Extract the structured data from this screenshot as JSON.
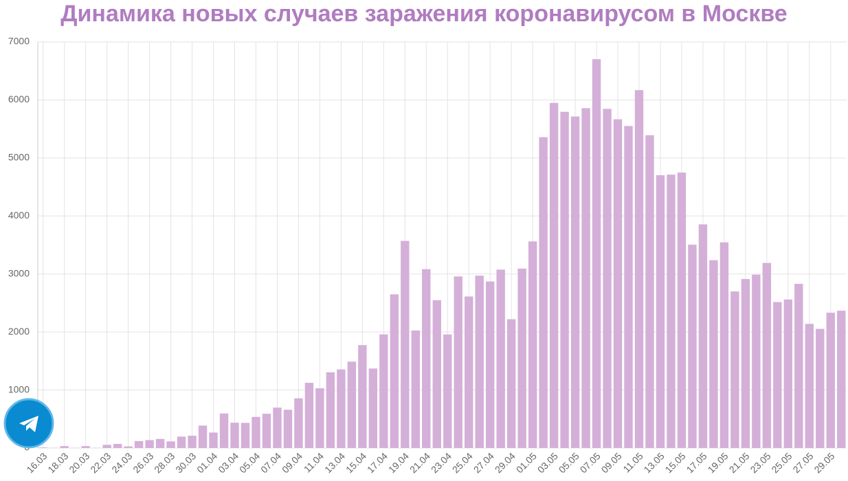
{
  "chart_data": {
    "type": "bar",
    "title": "Динамика новых случаев заражения коронавирусом в Москве",
    "categories": [
      "16.03",
      null,
      "18.03",
      null,
      "20.03",
      null,
      "22.03",
      null,
      "24.03",
      null,
      "26.03",
      null,
      "28.03",
      null,
      "30.03",
      null,
      "01.04",
      null,
      "03.04",
      null,
      "05.04",
      null,
      "07.04",
      null,
      "09.04",
      null,
      "11.04",
      null,
      "13.04",
      null,
      "15.04",
      null,
      "17.04",
      null,
      "19.04",
      null,
      "21.04",
      null,
      "23.04",
      null,
      "25.04",
      null,
      "27.04",
      null,
      "29.04",
      null,
      "01.05",
      null,
      "03.05",
      null,
      "05.05",
      null,
      "07.05",
      null,
      "09.05",
      null,
      "11.05",
      null,
      "13.05",
      null,
      "15.05",
      null,
      "17.05",
      null,
      "19.05",
      null,
      "21.05",
      null,
      "23.05",
      null,
      "25.05",
      null,
      "27.05",
      null,
      "29.05",
      null
    ],
    "values": [
      10,
      3,
      33,
      3,
      33,
      3,
      55,
      71,
      28,
      120,
      136,
      157,
      114,
      197,
      212,
      387,
      267,
      595,
      436,
      434,
      536,
      591,
      697,
      660,
      857,
      1124,
      1030,
      1306,
      1355,
      1489,
      1774,
      1370,
      1959,
      2649,
      3570,
      2026,
      3083,
      2548,
      1958,
      2957,
      2612,
      2971,
      2871,
      3075,
      2220,
      3093,
      3561,
      5358,
      5948,
      5795,
      5714,
      5858,
      6703,
      5846,
      5667,
      5551,
      6169,
      5392,
      4703,
      4712,
      4748,
      3505,
      3855,
      3238,
      3545,
      2699,
      2913,
      2988,
      3190,
      2516,
      2560,
      2830,
      2140,
      2054,
      2332,
      2367
    ],
    "color": "#d4afd8",
    "ylim": [
      0,
      7000
    ],
    "yticks": [
      0,
      1000,
      2000,
      3000,
      4000,
      5000,
      6000,
      7000
    ],
    "grid": true
  }
}
